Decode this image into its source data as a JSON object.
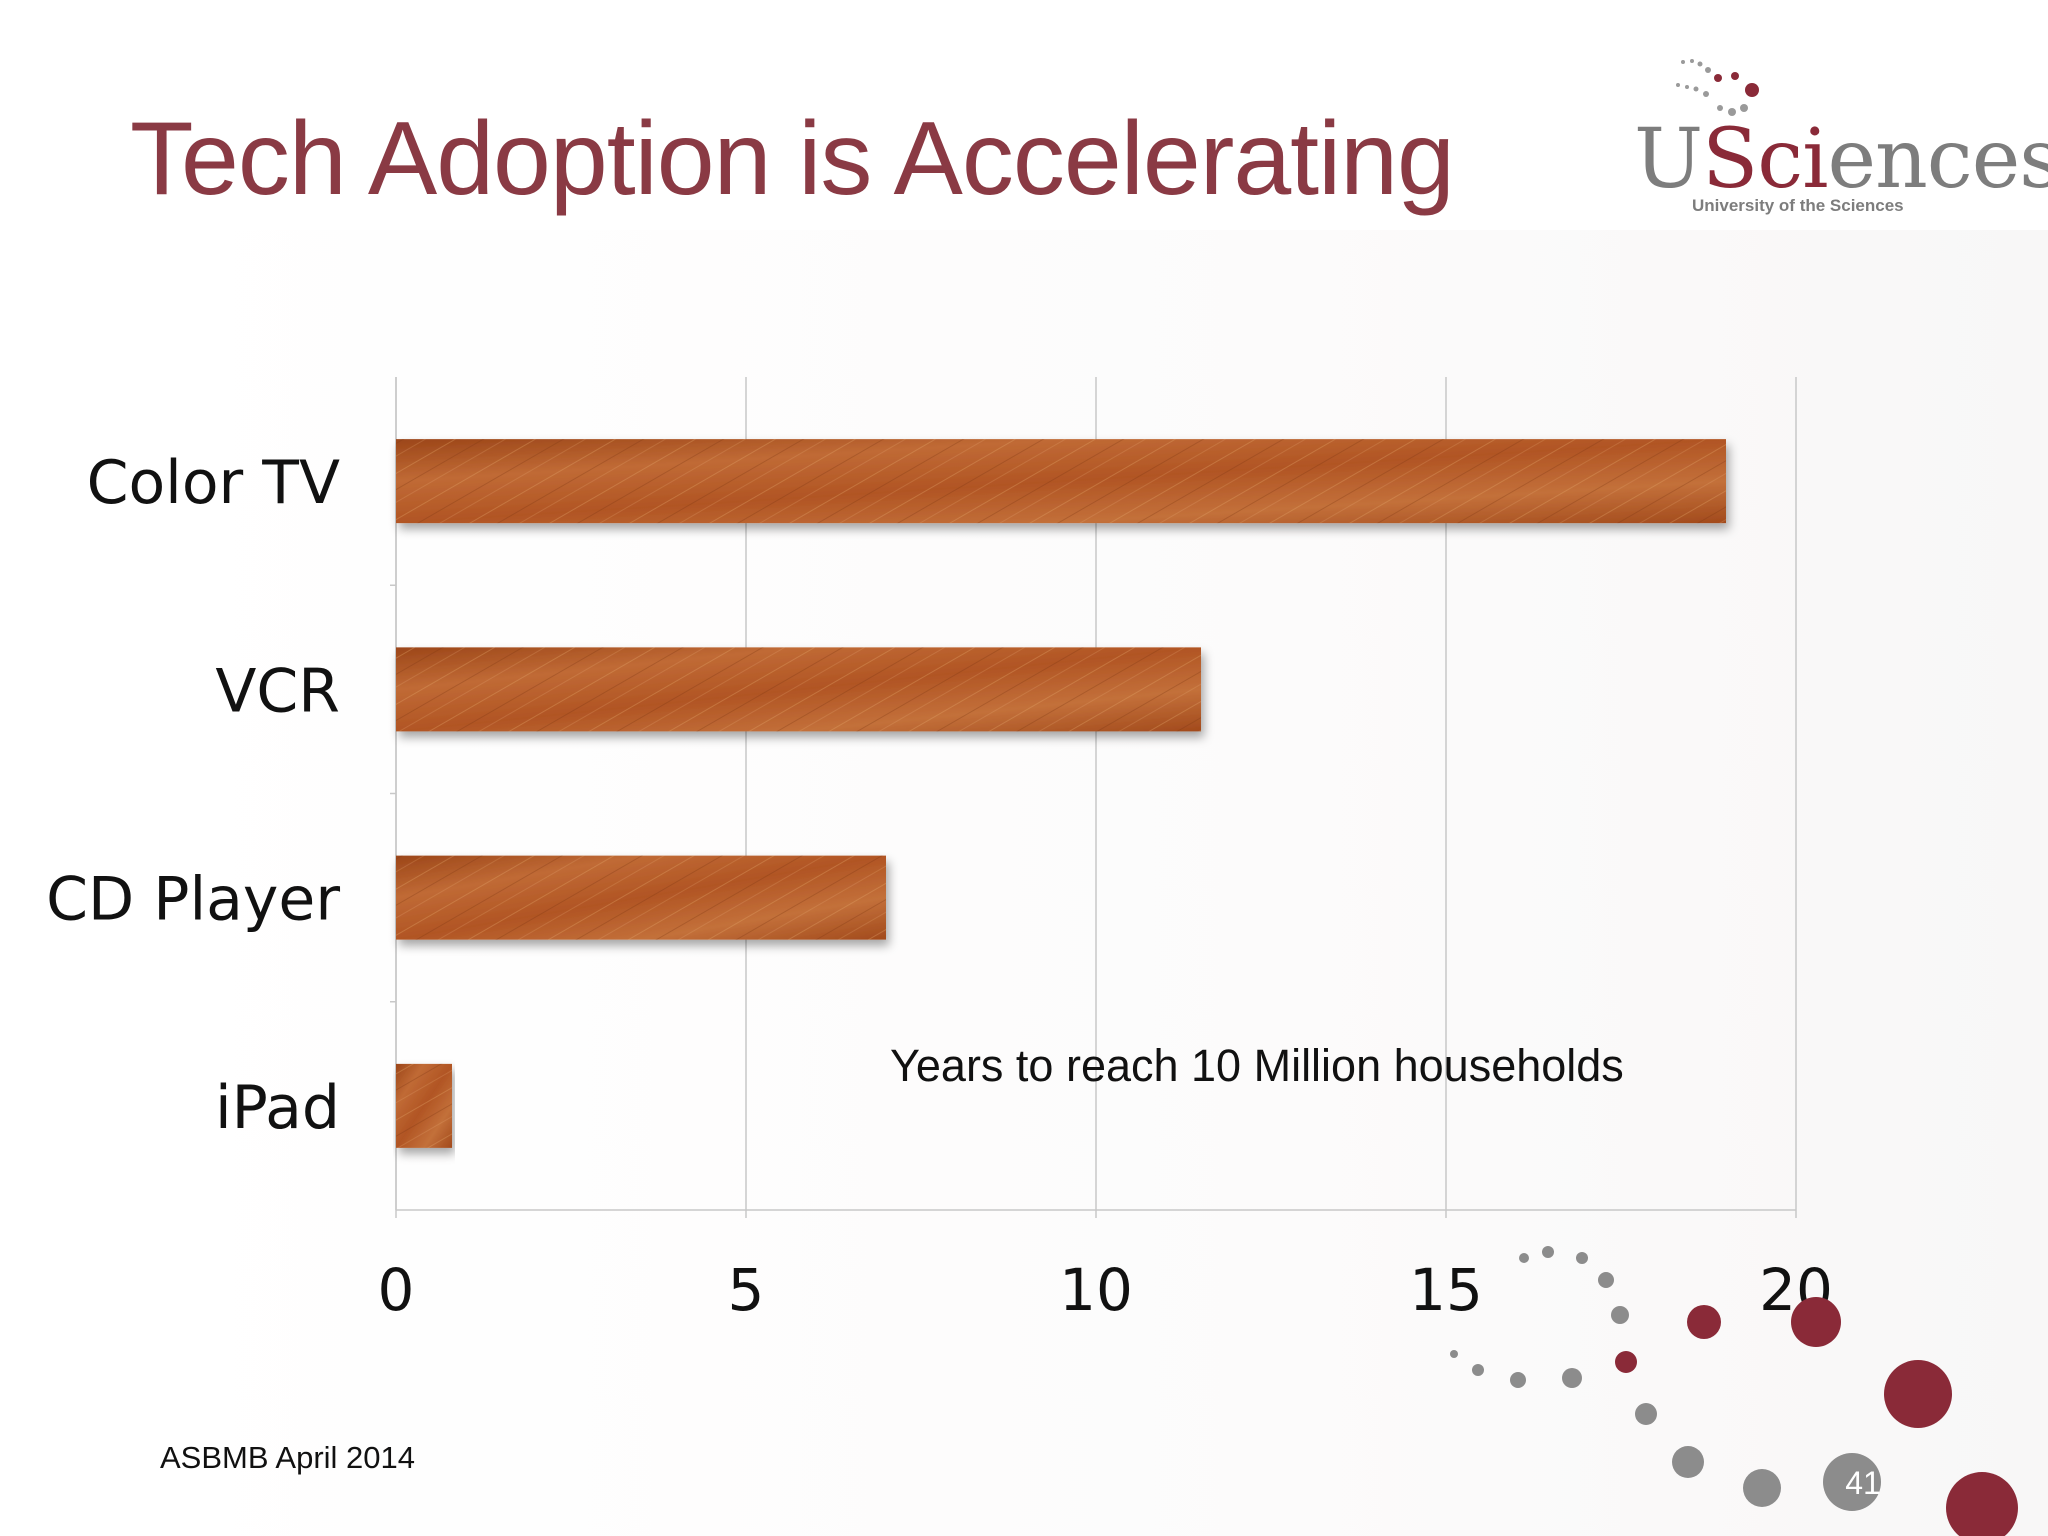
{
  "slide": {
    "title": "Tech Adoption is Accelerating",
    "footer": "ASBMB April 2014",
    "page_number": "41"
  },
  "logo": {
    "wordmark_prefix": "U",
    "wordmark_accent": "Sci",
    "wordmark_suffix": "ences",
    "subtitle": "University of the Sciences"
  },
  "colors": {
    "title": "#8a3a44",
    "bar": "#b45a28",
    "bar_dark": "#8e3e17",
    "bar_light": "#d4884b",
    "grid": "#c8c8c8",
    "logo_accent": "#8a2a38",
    "dot_gray": "#8c8c8c",
    "dot_red": "#8a2a38"
  },
  "chart_data": {
    "type": "bar",
    "orientation": "horizontal",
    "title": "",
    "xlabel": "",
    "ylabel": "",
    "categories": [
      "Color TV",
      "VCR",
      "CD Player",
      "iPad"
    ],
    "values": [
      19,
      11.5,
      7,
      0.8
    ],
    "xlim": [
      0,
      20
    ],
    "x_ticks": [
      "0",
      "5",
      "10",
      "15",
      "20"
    ],
    "grid": true,
    "annotation": "Years to reach 10 Million households"
  }
}
